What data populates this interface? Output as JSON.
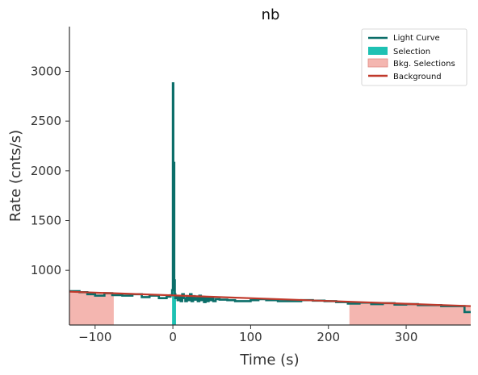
{
  "chart_data": {
    "type": "line",
    "title": "nb",
    "xlabel": "Time (s)",
    "ylabel": "Rate (cnts/s)",
    "xlim": [
      -133,
      383
    ],
    "ylim": [
      450,
      3450
    ],
    "x_ticks": [
      -100,
      0,
      100,
      200,
      300
    ],
    "x_tick_labels": [
      "−100",
      "0",
      "100",
      "200",
      "300"
    ],
    "y_ticks": [
      1000,
      1500,
      2000,
      2500,
      3000
    ],
    "y_tick_labels": [
      "1000",
      "1500",
      "2000",
      "2500",
      "3000"
    ],
    "grid": false,
    "legend_position": "top-right",
    "legend": [
      "Light Curve",
      "Selection",
      "Bkg. Selections",
      "Background"
    ],
    "colors": {
      "light_curve": "#0b6e69",
      "selection": "#1ec1b3",
      "bkg_selection": "#f4b6b0",
      "background": "#c0392b"
    },
    "background_fit": {
      "x": [
        -133,
        383
      ],
      "y": [
        785,
        640
      ]
    },
    "bkg_selections": [
      [
        -133,
        -76
      ],
      [
        227,
        383
      ]
    ],
    "selection": [
      -1,
      4
    ],
    "light_curve": {
      "x": [
        -133,
        -120,
        -110,
        -100,
        -88,
        -78,
        -65,
        -52,
        -40,
        -30,
        -18,
        -8,
        -3,
        -1,
        0,
        0.6,
        1.2,
        1.8,
        2.5,
        3.2,
        4,
        6,
        8,
        10,
        12,
        14,
        16,
        18,
        20,
        22,
        24,
        26,
        28,
        30,
        32,
        34,
        36,
        38,
        40,
        42,
        44,
        46,
        48,
        50,
        52,
        55,
        60,
        70,
        80,
        90,
        100,
        110,
        120,
        135,
        150,
        165,
        180,
        195,
        210,
        225,
        240,
        255,
        270,
        285,
        300,
        315,
        330,
        345,
        360,
        375,
        383
      ],
      "y": [
        790,
        780,
        760,
        745,
        770,
        750,
        745,
        760,
        730,
        745,
        720,
        735,
        750,
        800,
        2880,
        1400,
        2080,
        900,
        760,
        720,
        740,
        700,
        740,
        690,
        760,
        720,
        690,
        740,
        700,
        760,
        690,
        740,
        705,
        720,
        690,
        745,
        700,
        720,
        680,
        730,
        690,
        715,
        700,
        720,
        690,
        710,
        705,
        700,
        690,
        690,
        700,
        710,
        700,
        690,
        690,
        700,
        695,
        690,
        680,
        665,
        675,
        660,
        670,
        655,
        660,
        650,
        650,
        640,
        640,
        580,
        580
      ]
    }
  }
}
